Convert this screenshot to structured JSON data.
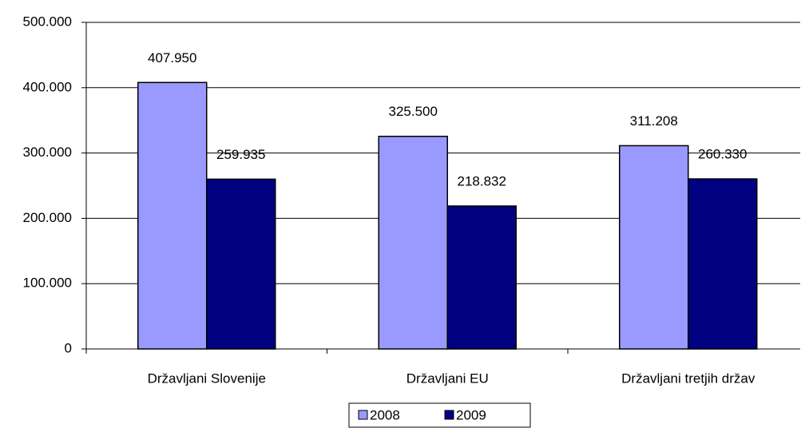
{
  "chart_data": {
    "type": "bar",
    "categories": [
      "Državljani Slovenije",
      "Državljani EU",
      "Državljani tretjih držav"
    ],
    "series": [
      {
        "name": "2008",
        "color": "#9999ff",
        "values": [
          407950,
          325500,
          311208
        ],
        "value_labels": [
          "407.950",
          "325.500",
          "311.208"
        ]
      },
      {
        "name": "2009",
        "color": "#000080",
        "values": [
          259935,
          218832,
          260330
        ],
        "value_labels": [
          "259.935",
          "218.832",
          "260.330"
        ]
      }
    ],
    "ylim": [
      0,
      500000
    ],
    "yticks": [
      0,
      {
        "value": 100000,
        "label": "100.000"
      },
      {
        "value": 200000,
        "label": "200.000"
      },
      {
        "value": 300000,
        "label": "300.000"
      },
      {
        "value": 400000,
        "label": "400.000"
      },
      {
        "value": 500000,
        "label": "500.000"
      }
    ],
    "grid": true,
    "legend": "bottom"
  }
}
